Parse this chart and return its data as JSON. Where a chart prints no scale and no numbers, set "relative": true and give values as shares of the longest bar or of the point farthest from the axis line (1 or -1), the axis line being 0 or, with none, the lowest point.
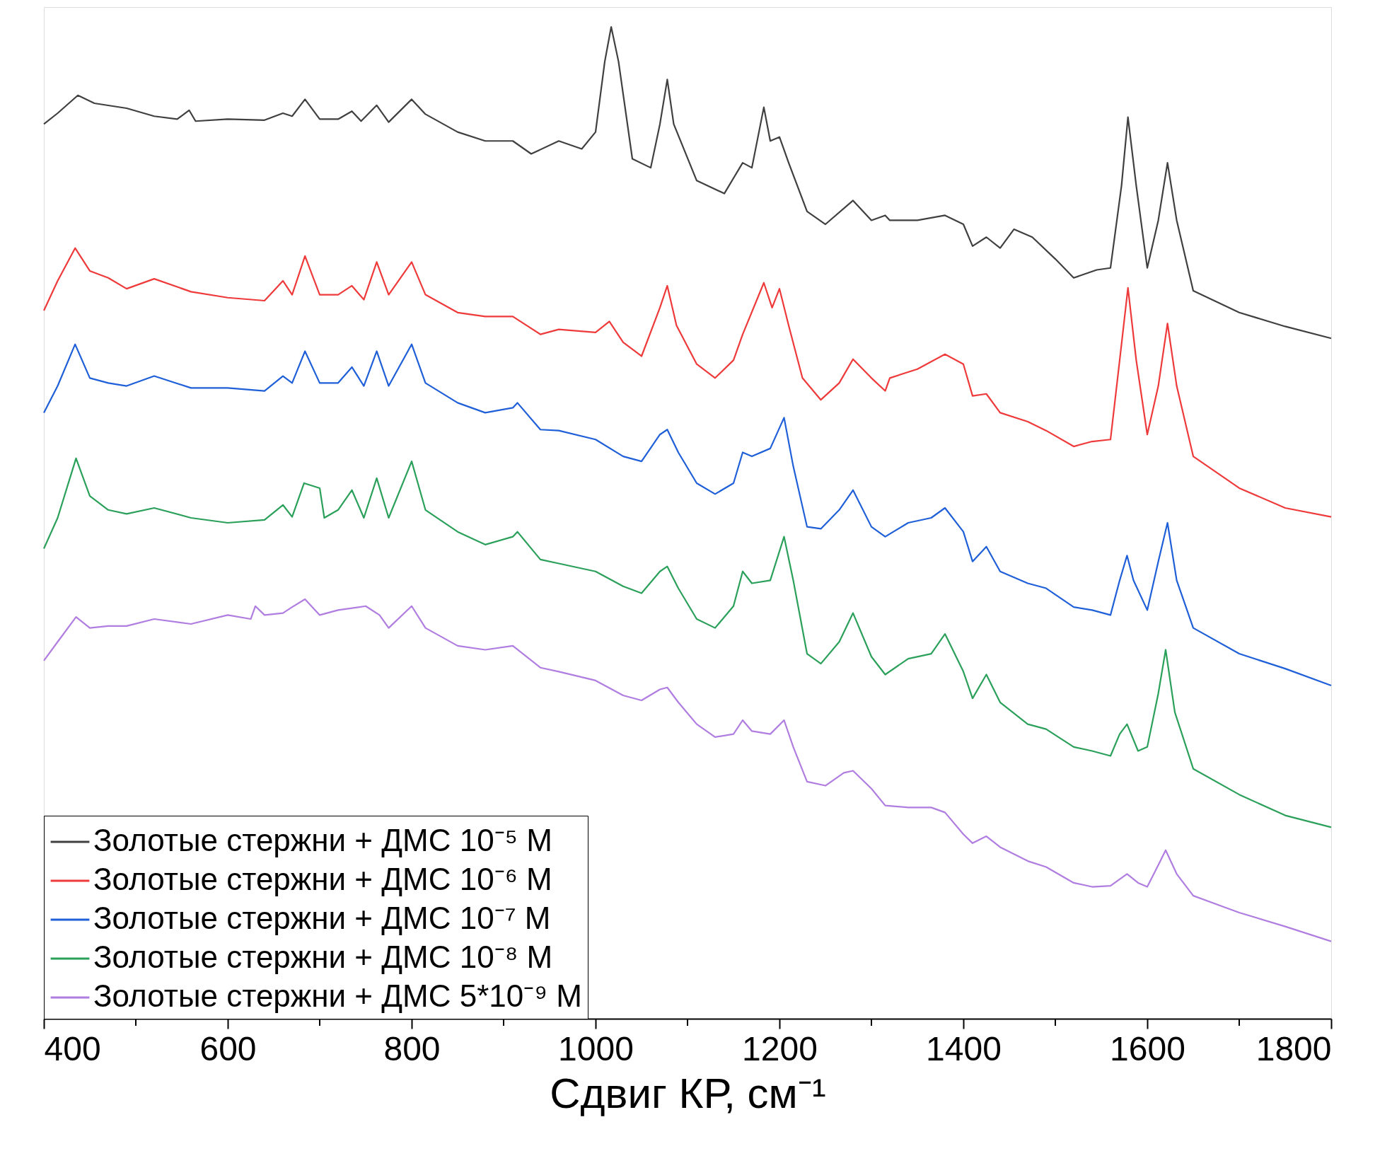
{
  "chart_data": {
    "type": "line",
    "relative": true,
    "xlabel": "Сдвиг КР, см⁻¹",
    "legend": "bottom left",
    "xlim": [
      400,
      1800
    ],
    "xticks": [
      400,
      {
        "value": 500,
        "label": null
      },
      600,
      {
        "value": 700,
        "label": null
      },
      800,
      {
        "value": 900,
        "label": null
      },
      1000,
      {
        "value": 1100,
        "label": null
      },
      1200,
      {
        "value": 1300,
        "label": null
      },
      1400,
      {
        "value": 1500,
        "label": null
      },
      1600,
      {
        "value": 1700,
        "label": null
      },
      1800
    ],
    "x": [
      400,
      415,
      437,
      455,
      490,
      520,
      545,
      558,
      565,
      600,
      640,
      660,
      670,
      684,
      700,
      720,
      735,
      745,
      762,
      775,
      800,
      815,
      850,
      880,
      910,
      930,
      960,
      985,
      1000,
      1010,
      1017,
      1025,
      1040,
      1060,
      1070,
      1078,
      1085,
      1110,
      1140,
      1160,
      1170,
      1183,
      1190,
      1200,
      1210,
      1230,
      1250,
      1280,
      1300,
      1315,
      1320,
      1350,
      1380,
      1400,
      1410,
      1425,
      1440,
      1455,
      1475,
      1500,
      1520,
      1545,
      1560,
      1572,
      1579,
      1588,
      1600,
      1612,
      1622,
      1632,
      1650,
      1700,
      1750,
      1800
    ],
    "series": [
      {
        "name": "Золотые стержни + ДМС 10⁻⁵ М",
        "color": "#404040",
        "values": [
          0.902,
          0.913,
          0.931,
          0.923,
          0.918,
          0.91,
          0.907,
          0.916,
          0.905,
          0.907,
          0.906,
          0.913,
          0.91,
          0.927,
          0.907,
          0.907,
          0.915,
          0.905,
          0.921,
          0.904,
          0.927,
          0.912,
          0.894,
          0.885,
          0.885,
          0.872,
          0.885,
          0.877,
          0.894,
          0.965,
          1,
          0.965,
          0.867,
          0.858,
          0.902,
          0.947,
          0.902,
          0.845,
          0.832,
          0.863,
          0.858,
          0.919,
          0.885,
          0.889,
          0.863,
          0.814,
          0.801,
          0.825,
          0.805,
          0.81,
          0.805,
          0.805,
          0.81,
          0.801,
          0.779,
          0.788,
          0.777,
          0.796,
          0.788,
          0.766,
          0.747,
          0.755,
          0.757,
          0.84,
          0.909,
          0.84,
          0.757,
          0.805,
          0.863,
          0.805,
          0.734,
          0.712,
          0.698,
          0.686
        ]
      },
      {
        "name": "Золотые стержни + ДМС 10⁻⁶ М",
        "color": "#ee3a3a",
        "x": [
          400,
          415,
          434,
          450,
          470,
          490,
          520,
          560,
          600,
          640,
          660,
          670,
          684,
          700,
          720,
          735,
          748,
          762,
          775,
          800,
          815,
          850,
          880,
          910,
          940,
          960,
          1000,
          1015,
          1030,
          1050,
          1070,
          1078,
          1088,
          1110,
          1130,
          1150,
          1160,
          1183,
          1192,
          1200,
          1210,
          1225,
          1245,
          1265,
          1280,
          1300,
          1315,
          1320,
          1350,
          1380,
          1400,
          1410,
          1425,
          1440,
          1470,
          1490,
          1520,
          1540,
          1560,
          1570,
          1579,
          1588,
          1600,
          1612,
          1622,
          1632,
          1650,
          1700,
          1750,
          1800
        ],
        "values": [
          0.714,
          0.744,
          0.777,
          0.754,
          0.747,
          0.736,
          0.746,
          0.733,
          0.727,
          0.724,
          0.744,
          0.73,
          0.769,
          0.73,
          0.73,
          0.739,
          0.725,
          0.763,
          0.73,
          0.763,
          0.73,
          0.712,
          0.708,
          0.708,
          0.69,
          0.695,
          0.692,
          0.703,
          0.682,
          0.668,
          0.717,
          0.739,
          0.699,
          0.66,
          0.646,
          0.664,
          0.69,
          0.742,
          0.717,
          0.736,
          0.699,
          0.646,
          0.624,
          0.641,
          0.665,
          0.646,
          0.633,
          0.646,
          0.655,
          0.67,
          0.66,
          0.628,
          0.63,
          0.611,
          0.602,
          0.593,
          0.577,
          0.582,
          0.584,
          0.664,
          0.737,
          0.664,
          0.589,
          0.638,
          0.701,
          0.638,
          0.567,
          0.535,
          0.515,
          0.506
        ]
      },
      {
        "name": "Золотые стержни + ДМС 10⁻⁷ М",
        "color": "#1f5fd8",
        "x": [
          400,
          415,
          434,
          450,
          470,
          490,
          520,
          560,
          600,
          640,
          660,
          670,
          684,
          700,
          720,
          735,
          748,
          762,
          775,
          800,
          815,
          850,
          880,
          910,
          915,
          940,
          960,
          1000,
          1030,
          1050,
          1070,
          1078,
          1090,
          1110,
          1130,
          1150,
          1160,
          1170,
          1190,
          1205,
          1215,
          1230,
          1245,
          1265,
          1280,
          1300,
          1315,
          1340,
          1365,
          1380,
          1400,
          1410,
          1425,
          1440,
          1470,
          1490,
          1520,
          1540,
          1560,
          1570,
          1578,
          1585,
          1600,
          1612,
          1622,
          1632,
          1650,
          1700,
          1750,
          1800
        ],
        "values": [
          0.611,
          0.638,
          0.68,
          0.646,
          0.641,
          0.638,
          0.648,
          0.636,
          0.636,
          0.633,
          0.648,
          0.641,
          0.673,
          0.641,
          0.641,
          0.657,
          0.638,
          0.673,
          0.638,
          0.68,
          0.641,
          0.621,
          0.611,
          0.616,
          0.621,
          0.594,
          0.593,
          0.584,
          0.567,
          0.562,
          0.589,
          0.594,
          0.571,
          0.54,
          0.529,
          0.54,
          0.571,
          0.567,
          0.575,
          0.606,
          0.557,
          0.496,
          0.494,
          0.513,
          0.533,
          0.496,
          0.486,
          0.5,
          0.505,
          0.515,
          0.491,
          0.461,
          0.476,
          0.451,
          0.439,
          0.434,
          0.415,
          0.412,
          0.407,
          0.442,
          0.467,
          0.442,
          0.412,
          0.461,
          0.5,
          0.442,
          0.394,
          0.368,
          0.353,
          0.336
        ]
      },
      {
        "name": "Золотые стержни + ДМС 10⁻⁸ М",
        "color": "#2ba05a",
        "x": [
          400,
          415,
          435,
          450,
          470,
          490,
          520,
          560,
          600,
          640,
          660,
          670,
          683,
          700,
          705,
          720,
          735,
          748,
          762,
          775,
          800,
          815,
          850,
          880,
          910,
          915,
          940,
          960,
          1000,
          1030,
          1050,
          1070,
          1078,
          1090,
          1110,
          1130,
          1150,
          1160,
          1170,
          1190,
          1205,
          1215,
          1230,
          1245,
          1265,
          1280,
          1300,
          1315,
          1340,
          1365,
          1380,
          1400,
          1410,
          1425,
          1440,
          1470,
          1490,
          1520,
          1540,
          1560,
          1570,
          1578,
          1590,
          1600,
          1612,
          1620,
          1630,
          1650,
          1700,
          1750,
          1800
        ],
        "values": [
          0.474,
          0.505,
          0.565,
          0.527,
          0.513,
          0.509,
          0.515,
          0.505,
          0.5,
          0.503,
          0.518,
          0.506,
          0.54,
          0.535,
          0.505,
          0.513,
          0.533,
          0.505,
          0.545,
          0.505,
          0.562,
          0.513,
          0.491,
          0.478,
          0.486,
          0.491,
          0.463,
          0.459,
          0.451,
          0.436,
          0.429,
          0.451,
          0.456,
          0.434,
          0.403,
          0.394,
          0.416,
          0.451,
          0.439,
          0.442,
          0.486,
          0.442,
          0.368,
          0.358,
          0.38,
          0.409,
          0.365,
          0.347,
          0.363,
          0.368,
          0.388,
          0.35,
          0.323,
          0.347,
          0.319,
          0.297,
          0.292,
          0.274,
          0.27,
          0.265,
          0.287,
          0.297,
          0.27,
          0.274,
          0.328,
          0.372,
          0.309,
          0.252,
          0.226,
          0.205,
          0.193
        ]
      },
      {
        "name": "Золотые стержни + ДМС 5*10⁻⁹ М",
        "color": "#b07de0",
        "x": [
          400,
          415,
          435,
          450,
          470,
          490,
          520,
          560,
          600,
          625,
          630,
          640,
          660,
          670,
          684,
          700,
          720,
          750,
          765,
          775,
          800,
          815,
          850,
          880,
          910,
          940,
          960,
          1000,
          1030,
          1050,
          1070,
          1078,
          1090,
          1110,
          1130,
          1150,
          1160,
          1170,
          1190,
          1205,
          1215,
          1230,
          1250,
          1270,
          1280,
          1300,
          1315,
          1340,
          1365,
          1380,
          1400,
          1410,
          1425,
          1440,
          1470,
          1490,
          1520,
          1540,
          1560,
          1578,
          1590,
          1600,
          1612,
          1620,
          1632,
          1650,
          1700,
          1750,
          1800
        ],
        "values": [
          0.361,
          0.38,
          0.405,
          0.394,
          0.396,
          0.396,
          0.403,
          0.398,
          0.407,
          0.403,
          0.416,
          0.407,
          0.409,
          0.415,
          0.423,
          0.407,
          0.412,
          0.416,
          0.407,
          0.394,
          0.416,
          0.394,
          0.376,
          0.372,
          0.376,
          0.354,
          0.35,
          0.341,
          0.326,
          0.321,
          0.332,
          0.334,
          0.319,
          0.297,
          0.284,
          0.287,
          0.301,
          0.29,
          0.287,
          0.301,
          0.274,
          0.239,
          0.235,
          0.248,
          0.25,
          0.232,
          0.215,
          0.213,
          0.213,
          0.208,
          0.186,
          0.177,
          0.184,
          0.173,
          0.159,
          0.153,
          0.137,
          0.133,
          0.134,
          0.146,
          0.137,
          0.133,
          0.155,
          0.17,
          0.146,
          0.124,
          0.107,
          0.093,
          0.078
        ]
      }
    ]
  }
}
